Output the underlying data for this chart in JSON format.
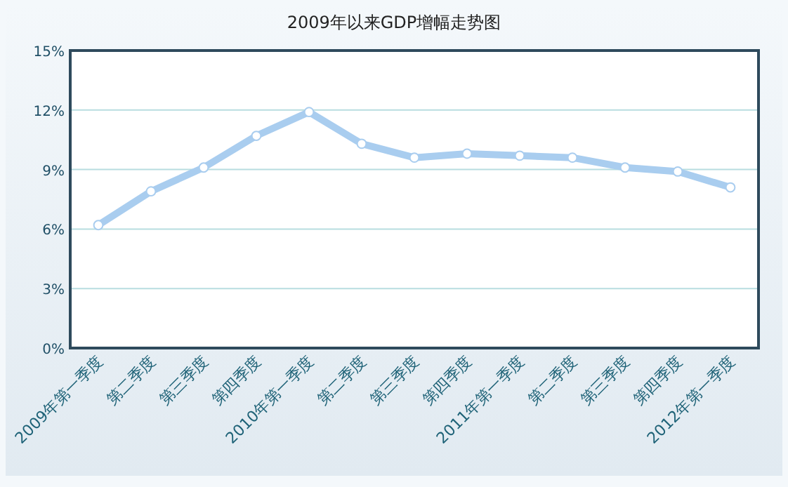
{
  "chart_data": {
    "type": "line",
    "title": "2009年以来GDP增幅走势图",
    "categories": [
      "2009年第一季度",
      "第二季度",
      "第三季度",
      "第四季度",
      "2010年第一季度",
      "第二季度",
      "第三季度",
      "第四季度",
      "2011年第一季度",
      "第二季度",
      "第三季度",
      "第四季度",
      "2012年第一季度"
    ],
    "series": [
      {
        "color": "#a9cdef",
        "values": [
          6.2,
          7.9,
          9.1,
          10.7,
          11.9,
          10.3,
          9.6,
          9.8,
          9.7,
          9.6,
          9.1,
          8.9,
          8.1
        ]
      }
    ],
    "ylim": [
      0,
      15
    ],
    "yticks": [
      {
        "value": 0,
        "label": "0%"
      },
      {
        "value": 3,
        "label": "3%"
      },
      {
        "value": 6,
        "label": "6%"
      },
      {
        "value": 9,
        "label": "9%"
      },
      {
        "value": 12,
        "label": "12%"
      },
      {
        "value": 15,
        "label": "15%"
      }
    ],
    "grid": "y",
    "marker": "circle"
  }
}
